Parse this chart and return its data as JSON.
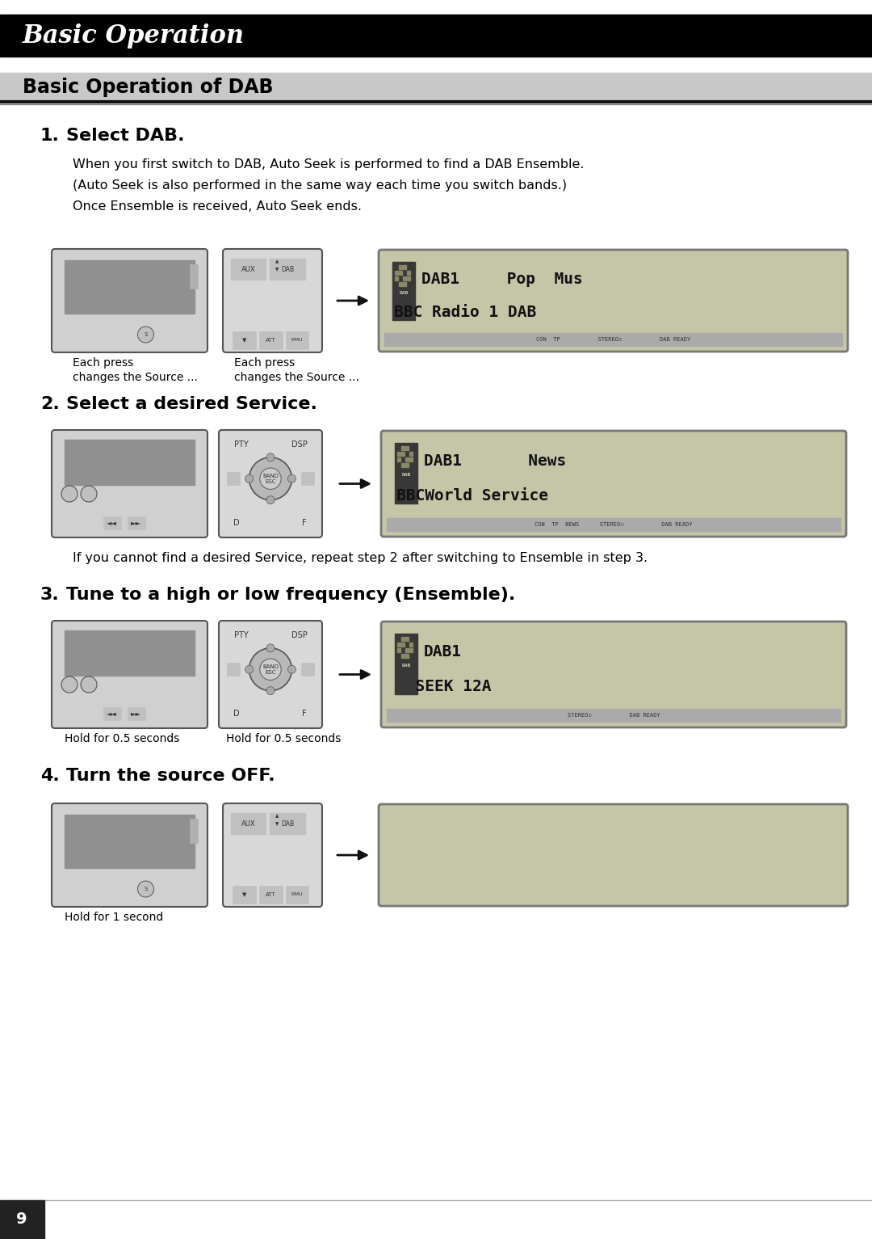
{
  "page_bg": "#ffffff",
  "header_bg": "#000000",
  "header_text": "Basic Operation",
  "header_text_color": "#ffffff",
  "section_title": "Basic Operation of DAB",
  "section_title_bg": "#c8c8c8",
  "section_title_color": "#000000",
  "steps": [
    {
      "number": "1.",
      "title": "Select DAB.",
      "body_lines": [
        "When you first switch to DAB, Auto Seek is performed to find a DAB Ensemble.",
        "(Auto Seek is also performed in the same way each time you switch bands.)",
        "Once Ensemble is received, Auto Seek ends."
      ],
      "cap_left": [
        "Each press",
        "changes the Source ..."
      ],
      "cap_mid": [
        "Each press",
        "changes the Source ..."
      ],
      "display_line1": "DAB1     Pop  Mus",
      "display_line2": "BBC Radio 1 DAB",
      "display_status": "CON  TP           STEREO☉           DAB READY",
      "display_empty": false
    },
    {
      "number": "2.",
      "title": "Select a desired Service.",
      "body_lines": [],
      "cap_left": [],
      "cap_mid": [],
      "display_line1": "DAB1       News",
      "display_line2": "BBCWorld Service",
      "display_status": "CON  TP  NEWS      STEREO☉           DAB READY",
      "display_empty": false,
      "note": "If you cannot find a desired Service, repeat step 2 after switching to Ensemble in step 3."
    },
    {
      "number": "3.",
      "title": "Tune to a high or low frequency (Ensemble).",
      "body_lines": [],
      "cap_left": [
        "Hold for 0.5 seconds"
      ],
      "cap_mid": [
        "Hold for 0.5 seconds"
      ],
      "display_line1": "DAB1",
      "display_line2": "  SEEK 12A",
      "display_status": "STEREO☉           DAB READY",
      "display_empty": false
    },
    {
      "number": "4.",
      "title": "Turn the source OFF.",
      "body_lines": [],
      "cap_left": [
        "Hold for 1 second"
      ],
      "cap_mid": [],
      "display_line1": "",
      "display_line2": "",
      "display_status": "",
      "display_empty": true
    }
  ],
  "page_number": "9",
  "footer_bg": "#222222",
  "footer_text_color": "#ffffff"
}
